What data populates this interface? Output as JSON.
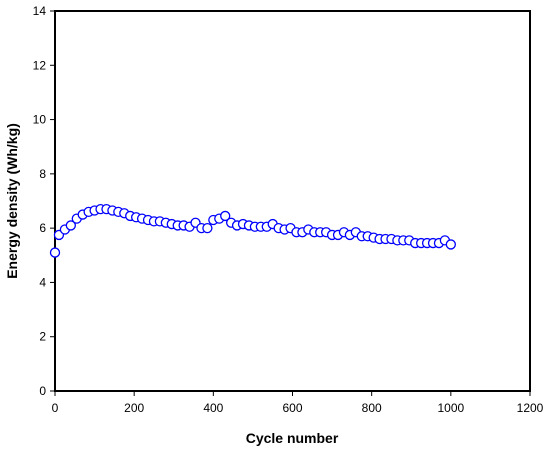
{
  "chart_data": {
    "type": "scatter",
    "xlabel": "Cycle number",
    "ylabel": "Energy density (Wh/kg)",
    "xlim": [
      0,
      1200
    ],
    "ylim": [
      0,
      14
    ],
    "xticks": [
      0,
      200,
      400,
      600,
      800,
      1000,
      1200
    ],
    "yticks": [
      0,
      2,
      4,
      6,
      8,
      10,
      12,
      14
    ],
    "xtick_labels": [
      "0",
      "200",
      "400",
      "600",
      "800",
      "1000",
      "1200"
    ],
    "ytick_labels": [
      "0",
      "2",
      "4",
      "6",
      "8",
      "10",
      "12",
      "14"
    ],
    "grid": false,
    "legend": "none",
    "marker": "open-circle",
    "marker_color": "#0000FF",
    "series": [
      {
        "points": [
          [
            0,
            5.1
          ],
          [
            10,
            5.75
          ],
          [
            25,
            5.95
          ],
          [
            40,
            6.1
          ],
          [
            55,
            6.35
          ],
          [
            70,
            6.5
          ],
          [
            85,
            6.6
          ],
          [
            100,
            6.65
          ],
          [
            115,
            6.7
          ],
          [
            130,
            6.7
          ],
          [
            145,
            6.65
          ],
          [
            160,
            6.6
          ],
          [
            175,
            6.55
          ],
          [
            190,
            6.45
          ],
          [
            205,
            6.4
          ],
          [
            220,
            6.35
          ],
          [
            235,
            6.3
          ],
          [
            250,
            6.25
          ],
          [
            265,
            6.25
          ],
          [
            280,
            6.2
          ],
          [
            295,
            6.15
          ],
          [
            310,
            6.1
          ],
          [
            325,
            6.1
          ],
          [
            340,
            6.05
          ],
          [
            355,
            6.2
          ],
          [
            370,
            6.0
          ],
          [
            385,
            6.0
          ],
          [
            400,
            6.3
          ],
          [
            415,
            6.35
          ],
          [
            430,
            6.45
          ],
          [
            445,
            6.2
          ],
          [
            460,
            6.1
          ],
          [
            475,
            6.15
          ],
          [
            490,
            6.1
          ],
          [
            505,
            6.05
          ],
          [
            520,
            6.05
          ],
          [
            535,
            6.05
          ],
          [
            550,
            6.15
          ],
          [
            565,
            6.0
          ],
          [
            580,
            5.95
          ],
          [
            595,
            6.0
          ],
          [
            610,
            5.85
          ],
          [
            625,
            5.85
          ],
          [
            640,
            5.95
          ],
          [
            655,
            5.85
          ],
          [
            670,
            5.85
          ],
          [
            685,
            5.85
          ],
          [
            700,
            5.75
          ],
          [
            715,
            5.75
          ],
          [
            730,
            5.85
          ],
          [
            745,
            5.75
          ],
          [
            760,
            5.85
          ],
          [
            775,
            5.7
          ],
          [
            790,
            5.7
          ],
          [
            805,
            5.65
          ],
          [
            820,
            5.6
          ],
          [
            835,
            5.6
          ],
          [
            850,
            5.6
          ],
          [
            865,
            5.55
          ],
          [
            880,
            5.55
          ],
          [
            895,
            5.55
          ],
          [
            910,
            5.45
          ],
          [
            925,
            5.45
          ],
          [
            940,
            5.45
          ],
          [
            955,
            5.45
          ],
          [
            970,
            5.45
          ],
          [
            985,
            5.55
          ],
          [
            1000,
            5.4
          ]
        ]
      }
    ]
  }
}
